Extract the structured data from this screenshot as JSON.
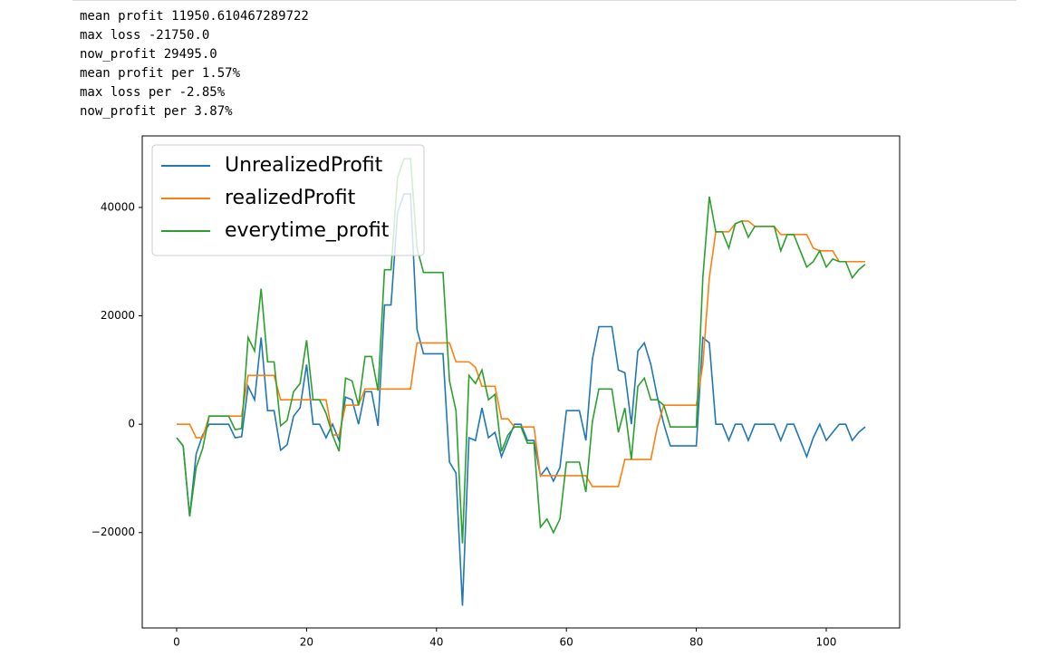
{
  "output_lines": [
    "mean profit 11950.610467289722",
    "max loss -21750.0",
    "now_profit 29495.0",
    "mean profit per 1.57%",
    "max loss per -2.85%",
    "now_profit per 3.87%"
  ],
  "chart_data": {
    "type": "line",
    "x": [
      0,
      1,
      2,
      3,
      4,
      5,
      6,
      7,
      8,
      9,
      10,
      11,
      12,
      13,
      14,
      15,
      16,
      17,
      18,
      19,
      20,
      21,
      22,
      23,
      24,
      25,
      26,
      27,
      28,
      29,
      30,
      31,
      32,
      33,
      34,
      35,
      36,
      37,
      38,
      39,
      40,
      41,
      42,
      43,
      44,
      45,
      46,
      47,
      48,
      49,
      50,
      51,
      52,
      53,
      54,
      55,
      56,
      57,
      58,
      59,
      60,
      61,
      62,
      63,
      64,
      65,
      66,
      67,
      68,
      69,
      70,
      71,
      72,
      73,
      74,
      75,
      76,
      77,
      78,
      79,
      80,
      81,
      82,
      83,
      84,
      85,
      86,
      87,
      88,
      89,
      90,
      91,
      92,
      93,
      94,
      95,
      96,
      97,
      98,
      99,
      100,
      101,
      102,
      103,
      104,
      105,
      106
    ],
    "series": [
      {
        "name": "UnrealizedProfit",
        "color": "#1f77b4",
        "values": [
          -2500,
          -4000,
          -17000,
          -5500,
          -2000,
          0,
          0,
          0,
          0,
          -2500,
          -2300,
          7000,
          4500,
          16000,
          2500,
          2500,
          -4800,
          -3800,
          1500,
          3000,
          11000,
          0,
          0,
          -2500,
          0,
          -3000,
          5000,
          4500,
          0,
          6000,
          6000,
          -300,
          22000,
          22000,
          39000,
          42500,
          42500,
          17500,
          13000,
          13000,
          13000,
          13000,
          -7000,
          -9000,
          -33500,
          -2500,
          -3000,
          3000,
          -2500,
          -1500,
          -6000,
          -3000,
          0,
          0,
          -3000,
          -3000,
          -9500,
          -8000,
          -10500,
          -8000,
          2500,
          2500,
          2500,
          -3000,
          12000,
          18000,
          18000,
          18000,
          10000,
          9500,
          0,
          13500,
          15000,
          11000,
          5000,
          0,
          -4000,
          -4000,
          -4000,
          -4000,
          -4000,
          16000,
          15000,
          0,
          0,
          -3000,
          0,
          0,
          -3000,
          0,
          0,
          0,
          0,
          -3000,
          0,
          0,
          -3000,
          -6000,
          -2500,
          0,
          -3000,
          -1500,
          0,
          0,
          -3000,
          -1500,
          -500
        ]
      },
      {
        "name": "realizedProfit",
        "color": "#ff7f0e",
        "values": [
          0,
          0,
          0,
          -2500,
          -2500,
          1500,
          1500,
          1500,
          1500,
          1500,
          1500,
          9000,
          9000,
          9000,
          9000,
          9000,
          4500,
          4500,
          4500,
          4500,
          4500,
          4500,
          4500,
          4500,
          -2000,
          -2000,
          3500,
          3500,
          3500,
          6500,
          6500,
          6500,
          6500,
          6500,
          6500,
          6500,
          6500,
          15000,
          15000,
          15000,
          15000,
          15000,
          15000,
          11500,
          11500,
          11500,
          10500,
          7000,
          7000,
          7000,
          1000,
          1000,
          -500,
          -500,
          -500,
          -500,
          -9500,
          -9500,
          -9500,
          -9500,
          -9500,
          -9500,
          -9500,
          -9500,
          -11500,
          -11500,
          -11500,
          -11500,
          -11500,
          -6500,
          -6500,
          -6500,
          -6500,
          -6500,
          -500,
          3500,
          3500,
          3500,
          3500,
          3500,
          3500,
          11000,
          27000,
          35500,
          35500,
          35500,
          37000,
          37500,
          37500,
          36500,
          36500,
          36500,
          36500,
          35000,
          35000,
          35000,
          35000,
          35000,
          32500,
          32000,
          32000,
          32000,
          30000,
          30000,
          30000,
          30000,
          30000
        ]
      },
      {
        "name": "everytime_profit",
        "color": "#2ca02c",
        "values": [
          -2500,
          -4000,
          -17000,
          -8000,
          -4500,
          1500,
          1500,
          1500,
          1500,
          -1000,
          -800,
          16000,
          13500,
          25000,
          11500,
          11500,
          -300,
          700,
          6000,
          7500,
          15500,
          4500,
          4500,
          2000,
          -2000,
          -5000,
          8500,
          8000,
          3500,
          12500,
          12500,
          6200,
          28500,
          28500,
          45500,
          49000,
          49000,
          32500,
          28000,
          28000,
          28000,
          28000,
          8000,
          2500,
          -22000,
          9000,
          7500,
          10000,
          4500,
          5500,
          -5000,
          -2000,
          -500,
          -500,
          -3500,
          -3500,
          -19000,
          -17500,
          -20000,
          -17500,
          -7000,
          -7000,
          -7000,
          -12500,
          500,
          6500,
          6500,
          6500,
          -1500,
          3000,
          -6500,
          7000,
          8500,
          4500,
          4500,
          3500,
          -500,
          -500,
          -500,
          -500,
          -500,
          27000,
          42000,
          35500,
          35500,
          32500,
          37000,
          37500,
          34500,
          36500,
          36500,
          36500,
          36500,
          32000,
          35000,
          35000,
          32000,
          29000,
          30000,
          32000,
          29000,
          30500,
          30000,
          30000,
          27000,
          28500,
          29500
        ]
      }
    ],
    "xlim": [
      -5.3,
      111.3
    ],
    "ylim": [
      -37600,
      53200
    ],
    "xticks": [
      0,
      20,
      40,
      60,
      80,
      100
    ],
    "yticks": [
      {
        "value": -20000,
        "label": "−20000"
      },
      0,
      20000,
      40000
    ],
    "legend": "upper left"
  }
}
